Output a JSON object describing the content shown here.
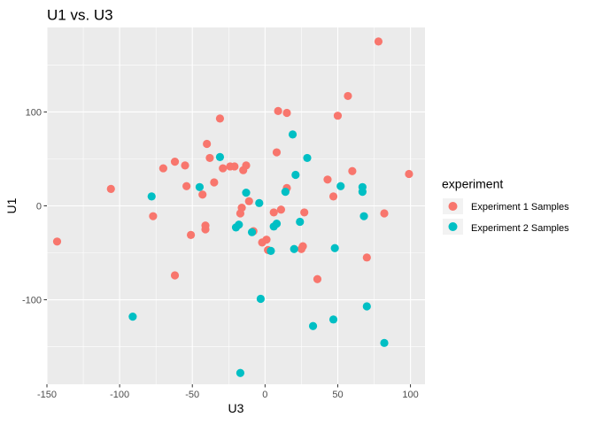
{
  "chart_data": {
    "type": "scatter",
    "title": "U1 vs. U3",
    "xlabel": "U3",
    "ylabel": "U1",
    "xlim": [
      -150,
      110
    ],
    "ylim": [
      -190,
      190
    ],
    "xticks": [
      -150,
      -100,
      -50,
      0,
      50,
      100
    ],
    "yticks": [
      -100,
      0,
      100
    ],
    "xtick_labels": [
      "-150",
      "-100",
      "-50",
      "0",
      "50",
      "100"
    ],
    "ytick_labels": [
      "-100",
      "0",
      "100"
    ],
    "grid": true,
    "legend": {
      "title": "experiment",
      "placement": "right"
    },
    "series": [
      {
        "name": "Experiment 1 Samples",
        "color": "#F8766D",
        "points": [
          [
            -143,
            -38
          ],
          [
            -106,
            18
          ],
          [
            -77,
            -11
          ],
          [
            -70,
            40
          ],
          [
            -62,
            47
          ],
          [
            -62,
            -74
          ],
          [
            -55,
            43
          ],
          [
            -54,
            21
          ],
          [
            -51,
            -31
          ],
          [
            -43,
            12
          ],
          [
            -41,
            -21
          ],
          [
            -41,
            -25
          ],
          [
            -40,
            66
          ],
          [
            -38,
            51
          ],
          [
            -35,
            25
          ],
          [
            -31,
            93
          ],
          [
            -29,
            40
          ],
          [
            -24,
            42
          ],
          [
            -21,
            42
          ],
          [
            -17,
            -8
          ],
          [
            -16,
            -2
          ],
          [
            -15,
            38
          ],
          [
            -13,
            43
          ],
          [
            -11,
            5
          ],
          [
            -8,
            -27
          ],
          [
            -2,
            -39
          ],
          [
            1,
            -36
          ],
          [
            2,
            -47
          ],
          [
            6,
            -7
          ],
          [
            8,
            57
          ],
          [
            9,
            101
          ],
          [
            11,
            -4
          ],
          [
            15,
            99
          ],
          [
            15,
            19
          ],
          [
            25,
            -46
          ],
          [
            26,
            -43
          ],
          [
            27,
            -7
          ],
          [
            36,
            -78
          ],
          [
            43,
            28
          ],
          [
            47,
            10
          ],
          [
            50,
            96
          ],
          [
            57,
            117
          ],
          [
            60,
            37
          ],
          [
            70,
            -55
          ],
          [
            78,
            175
          ],
          [
            82,
            -8
          ],
          [
            99,
            34
          ]
        ]
      },
      {
        "name": "Experiment 2 Samples",
        "color": "#00BFC4",
        "points": [
          [
            -91,
            -118
          ],
          [
            -78,
            10
          ],
          [
            -45,
            20
          ],
          [
            -31,
            52
          ],
          [
            -20,
            -23
          ],
          [
            -18,
            -20
          ],
          [
            -17,
            -178
          ],
          [
            -13,
            14
          ],
          [
            -9,
            -28
          ],
          [
            -4,
            3
          ],
          [
            -3,
            -99
          ],
          [
            4,
            -48
          ],
          [
            6,
            -22
          ],
          [
            8,
            -19
          ],
          [
            14,
            15
          ],
          [
            19,
            76
          ],
          [
            20,
            -46
          ],
          [
            21,
            33
          ],
          [
            24,
            -17
          ],
          [
            29,
            51
          ],
          [
            33,
            -128
          ],
          [
            47,
            -121
          ],
          [
            48,
            -45
          ],
          [
            52,
            21
          ],
          [
            67,
            20
          ],
          [
            67,
            15
          ],
          [
            68,
            -11
          ],
          [
            70,
            -107
          ],
          [
            82,
            -146
          ]
        ]
      }
    ]
  }
}
